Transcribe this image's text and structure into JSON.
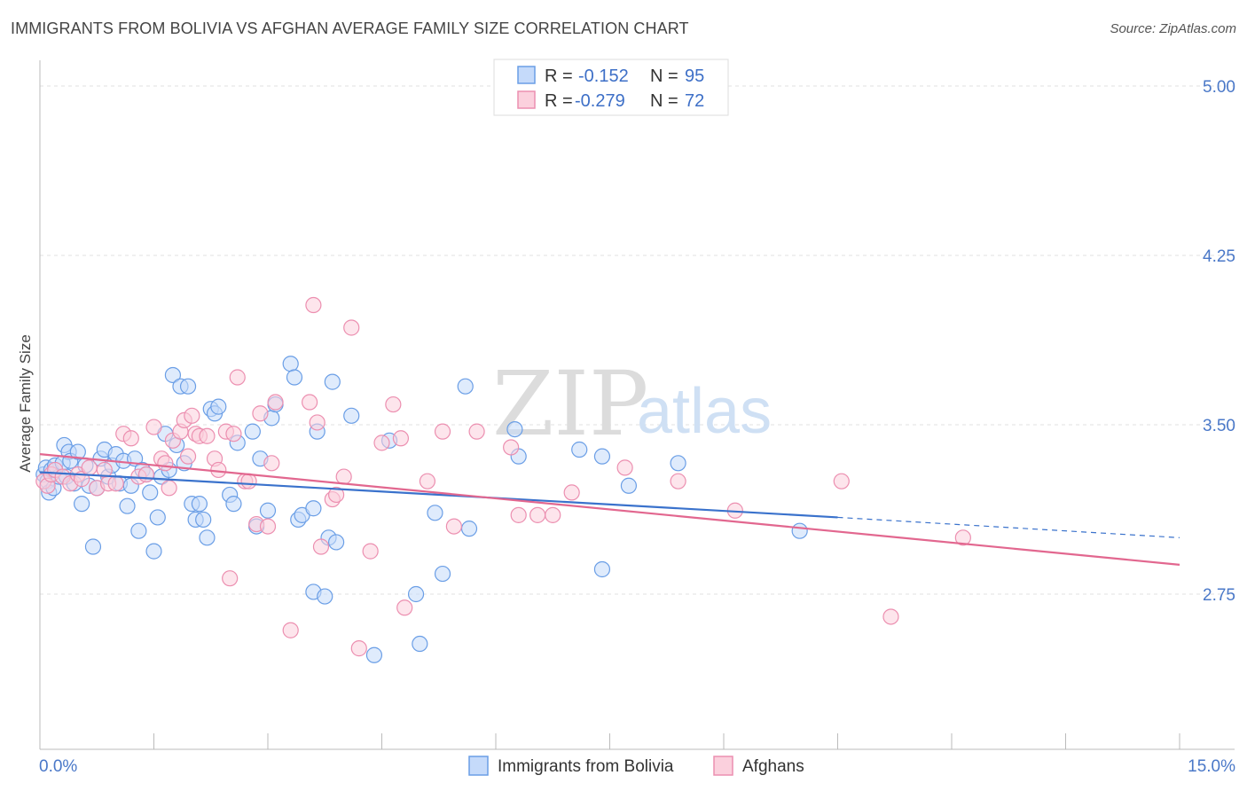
{
  "header": {
    "title": "IMMIGRANTS FROM BOLIVIA VS AFGHAN AVERAGE FAMILY SIZE CORRELATION CHART",
    "source": "Source: ZipAtlas.com"
  },
  "watermark": {
    "zip": "ZIP",
    "atlas": "atlas"
  },
  "legend": {
    "r_label": "R =",
    "n_label": "N =",
    "rows": [
      {
        "r": "-0.152",
        "n": "95",
        "color": "#6a9ee6",
        "fill": "#c5dafa"
      },
      {
        "r": "-0.279",
        "n": "72",
        "color": "#ec8fb0",
        "fill": "#fbd0dd"
      }
    ]
  },
  "chart_data": {
    "type": "scatter",
    "xlabel": "",
    "ylabel": "Average Family Size",
    "xlim": [
      0,
      15
    ],
    "ylim": [
      2.0,
      5.2
    ],
    "x_tick_labels": [
      "0.0%",
      "15.0%"
    ],
    "y_ticks": [
      2.75,
      3.5,
      4.25,
      5.0
    ],
    "y_tick_labels": [
      "2.75",
      "3.50",
      "4.25",
      "5.00"
    ],
    "grid": "horizontal dashed",
    "legend_position": "top-center",
    "series": [
      {
        "name": "Immigrants from Bolivia",
        "color": "#6a9ee6",
        "fill": "#c5dafa",
        "line_color": "#3a72cc",
        "trend": {
          "x0": 0,
          "y0": 3.29,
          "x1": 10.5,
          "y1": 3.09,
          "dashed_to_x": 15,
          "dashed_to_y": 3.0
        },
        "points": [
          [
            0.05,
            3.28
          ],
          [
            0.08,
            3.31
          ],
          [
            0.1,
            3.25
          ],
          [
            0.12,
            3.2
          ],
          [
            0.15,
            3.3
          ],
          [
            0.18,
            3.22
          ],
          [
            0.2,
            3.32
          ],
          [
            0.25,
            3.27
          ],
          [
            0.3,
            3.33
          ],
          [
            0.32,
            3.41
          ],
          [
            0.35,
            3.27
          ],
          [
            0.38,
            3.38
          ],
          [
            0.4,
            3.34
          ],
          [
            0.45,
            3.24
          ],
          [
            0.5,
            3.38
          ],
          [
            0.55,
            3.15
          ],
          [
            0.6,
            3.32
          ],
          [
            0.65,
            3.23
          ],
          [
            0.7,
            2.96
          ],
          [
            0.75,
            3.22
          ],
          [
            0.8,
            3.35
          ],
          [
            0.85,
            3.39
          ],
          [
            0.9,
            3.27
          ],
          [
            0.95,
            3.32
          ],
          [
            1.0,
            3.37
          ],
          [
            1.05,
            3.24
          ],
          [
            1.1,
            3.34
          ],
          [
            1.15,
            3.14
          ],
          [
            1.2,
            3.23
          ],
          [
            1.25,
            3.35
          ],
          [
            1.3,
            3.03
          ],
          [
            1.35,
            3.3
          ],
          [
            1.4,
            3.28
          ],
          [
            1.45,
            3.2
          ],
          [
            1.5,
            2.94
          ],
          [
            1.55,
            3.09
          ],
          [
            1.6,
            3.27
          ],
          [
            1.65,
            3.46
          ],
          [
            1.7,
            3.3
          ],
          [
            1.75,
            3.72
          ],
          [
            1.8,
            3.41
          ],
          [
            1.85,
            3.67
          ],
          [
            1.9,
            3.33
          ],
          [
            1.95,
            3.67
          ],
          [
            2.0,
            3.15
          ],
          [
            2.05,
            3.08
          ],
          [
            2.1,
            3.15
          ],
          [
            2.15,
            3.08
          ],
          [
            2.2,
            3.0
          ],
          [
            2.25,
            3.57
          ],
          [
            2.3,
            3.55
          ],
          [
            2.35,
            3.58
          ],
          [
            2.5,
            3.19
          ],
          [
            2.55,
            3.15
          ],
          [
            2.6,
            3.42
          ],
          [
            2.8,
            3.47
          ],
          [
            2.85,
            3.05
          ],
          [
            2.9,
            3.35
          ],
          [
            3.0,
            3.12
          ],
          [
            3.05,
            3.53
          ],
          [
            3.1,
            3.59
          ],
          [
            3.3,
            3.77
          ],
          [
            3.35,
            3.71
          ],
          [
            3.4,
            3.08
          ],
          [
            3.45,
            3.1
          ],
          [
            3.6,
            3.13
          ],
          [
            3.6,
            2.76
          ],
          [
            3.65,
            3.47
          ],
          [
            3.75,
            2.74
          ],
          [
            3.8,
            3.0
          ],
          [
            3.85,
            3.69
          ],
          [
            3.9,
            2.98
          ],
          [
            4.1,
            3.54
          ],
          [
            4.4,
            2.48
          ],
          [
            4.6,
            3.43
          ],
          [
            4.95,
            2.75
          ],
          [
            5.0,
            2.53
          ],
          [
            5.2,
            3.11
          ],
          [
            5.3,
            2.84
          ],
          [
            5.6,
            3.67
          ],
          [
            5.65,
            3.04
          ],
          [
            6.25,
            3.48
          ],
          [
            6.3,
            3.36
          ],
          [
            7.1,
            3.39
          ],
          [
            7.4,
            3.36
          ],
          [
            7.4,
            2.86
          ],
          [
            7.75,
            3.23
          ],
          [
            8.4,
            3.33
          ],
          [
            10.0,
            3.03
          ]
        ]
      },
      {
        "name": "Afghans",
        "color": "#ec8fb0",
        "fill": "#fbd0dd",
        "line_color": "#e2678f",
        "trend": {
          "x0": 0,
          "y0": 3.37,
          "x1": 15,
          "y1": 2.88
        },
        "points": [
          [
            0.05,
            3.25
          ],
          [
            0.1,
            3.23
          ],
          [
            0.15,
            3.28
          ],
          [
            0.2,
            3.3
          ],
          [
            0.3,
            3.27
          ],
          [
            0.4,
            3.24
          ],
          [
            0.5,
            3.28
          ],
          [
            0.55,
            3.26
          ],
          [
            0.65,
            3.31
          ],
          [
            0.75,
            3.22
          ],
          [
            0.85,
            3.3
          ],
          [
            0.9,
            3.24
          ],
          [
            1.0,
            3.24
          ],
          [
            1.1,
            3.46
          ],
          [
            1.2,
            3.44
          ],
          [
            1.3,
            3.27
          ],
          [
            1.4,
            3.28
          ],
          [
            1.5,
            3.49
          ],
          [
            1.6,
            3.35
          ],
          [
            1.65,
            3.33
          ],
          [
            1.7,
            3.22
          ],
          [
            1.75,
            3.43
          ],
          [
            1.85,
            3.47
          ],
          [
            1.9,
            3.52
          ],
          [
            1.95,
            3.36
          ],
          [
            2.0,
            3.54
          ],
          [
            2.05,
            3.46
          ],
          [
            2.1,
            3.45
          ],
          [
            2.2,
            3.45
          ],
          [
            2.3,
            3.35
          ],
          [
            2.35,
            3.3
          ],
          [
            2.45,
            3.47
          ],
          [
            2.5,
            2.82
          ],
          [
            2.55,
            3.46
          ],
          [
            2.6,
            3.71
          ],
          [
            2.7,
            3.25
          ],
          [
            2.75,
            3.25
          ],
          [
            2.85,
            3.06
          ],
          [
            2.9,
            3.55
          ],
          [
            3.0,
            3.05
          ],
          [
            3.05,
            3.33
          ],
          [
            3.1,
            3.6
          ],
          [
            3.3,
            2.59
          ],
          [
            3.55,
            3.6
          ],
          [
            3.6,
            4.03
          ],
          [
            3.65,
            3.51
          ],
          [
            3.7,
            2.96
          ],
          [
            3.85,
            3.17
          ],
          [
            3.9,
            3.19
          ],
          [
            4.0,
            3.27
          ],
          [
            4.1,
            3.93
          ],
          [
            4.2,
            2.51
          ],
          [
            4.35,
            2.94
          ],
          [
            4.5,
            3.42
          ],
          [
            4.65,
            3.59
          ],
          [
            4.75,
            3.44
          ],
          [
            4.8,
            2.69
          ],
          [
            5.1,
            3.25
          ],
          [
            5.45,
            3.05
          ],
          [
            5.75,
            3.47
          ],
          [
            6.3,
            3.1
          ],
          [
            6.55,
            3.1
          ],
          [
            6.75,
            3.1
          ],
          [
            7.0,
            3.2
          ],
          [
            8.4,
            3.25
          ],
          [
            9.15,
            3.12
          ],
          [
            10.55,
            3.25
          ],
          [
            11.2,
            2.65
          ],
          [
            12.15,
            3.0
          ],
          [
            5.3,
            3.47
          ],
          [
            6.2,
            3.4
          ],
          [
            7.7,
            3.31
          ]
        ]
      }
    ]
  }
}
